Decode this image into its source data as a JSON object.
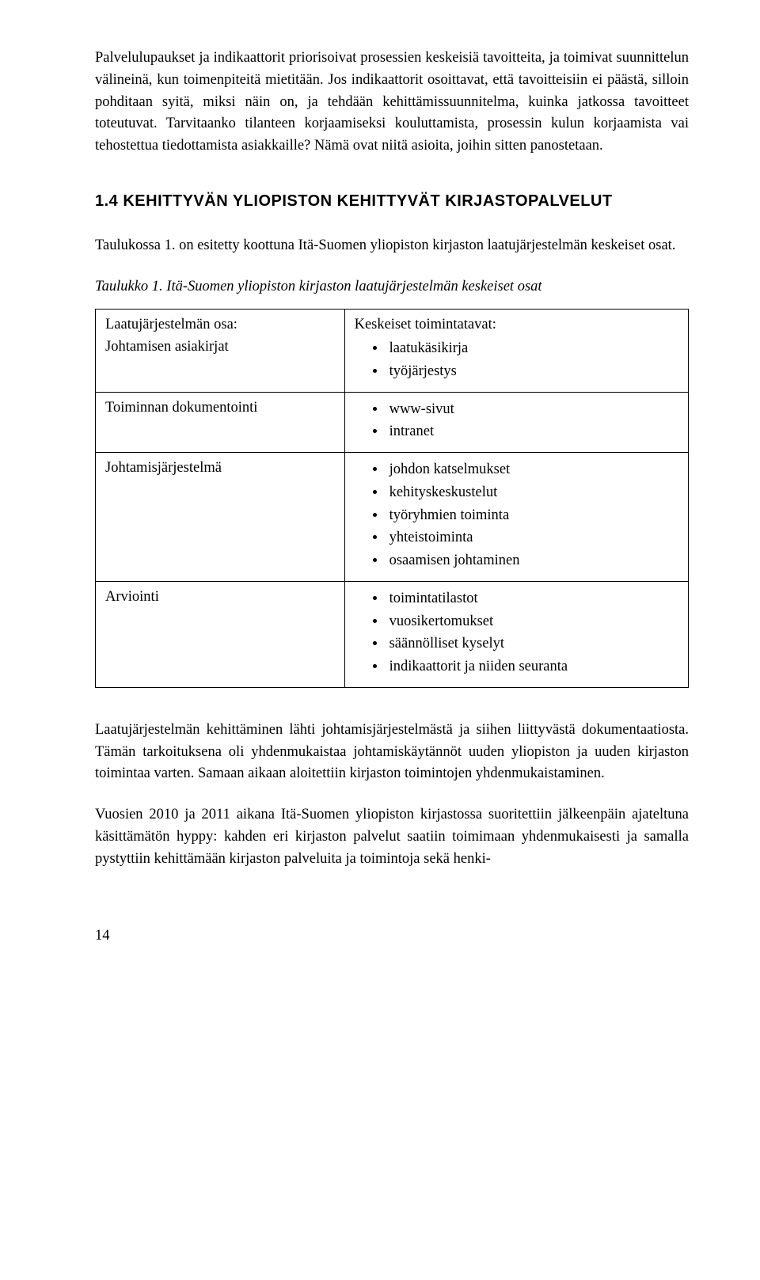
{
  "paragraphs": {
    "p1": "Palvelulupaukset ja indikaattorit priorisoivat prosessien keskeisiä tavoitteita, ja toimivat suunnittelun välineinä, kun toimenpiteitä mietitään. Jos indikaattorit osoittavat, että tavoitteisiin ei päästä, silloin pohditaan syitä, miksi näin on, ja tehdään kehittämissuunnitelma, kuinka jatkossa tavoitteet toteutuvat. Tarvitaanko tilanteen korjaamiseksi kouluttamista, prosessin kulun korjaamista vai tehostettua tiedottamista asiakkaille? Nämä ovat niitä asioita, joihin sitten panostetaan.",
    "p2": "Taulukossa 1. on esitetty koottuna Itä-Suomen yliopiston kirjaston laatujärjestelmän keskeiset osat.",
    "p3": "Laatujärjestelmän kehittäminen lähti johtamisjärjestelmästä ja siihen liittyvästä dokumentaatiosta. Tämän tarkoituksena oli yhdenmukaistaa johtamiskäytännöt uuden yliopiston ja uuden kirjaston toimintaa varten. Samaan aikaan aloitettiin kirjaston toimintojen yhdenmukaistaminen.",
    "p4": "Vuosien 2010 ja 2011 aikana Itä-Suomen yliopiston kirjastossa suoritettiin jälkeenpäin ajateltuna käsittämätön hyppy: kahden eri kirjaston palvelut saatiin toimimaan yhdenmukaisesti ja samalla pystyttiin kehittämään kirjaston palveluita ja toimintoja sekä henki-"
  },
  "heading": "1.4 KEHITTYVÄN YLIOPISTON KEHITTYVÄT KIRJASTOPALVELUT",
  "table_caption": "Taulukko 1. Itä-Suomen yliopiston kirjaston laatujärjestelmän keskeiset osat",
  "table": {
    "header_left": "Laatujärjestelmän osa:",
    "header_right": "Keskeiset toimintatavat:",
    "rows": [
      {
        "left": "Johtamisen asiakirjat",
        "items": [
          "laatukäsikirja",
          "työjärjestys"
        ]
      },
      {
        "left": "Toiminnan dokumentointi",
        "items": [
          "www-sivut",
          "intranet"
        ]
      },
      {
        "left": "Johtamisjärjestelmä",
        "items": [
          "johdon katselmukset",
          "kehityskeskustelut",
          "työryhmien toiminta",
          "yhteistoiminta",
          "osaamisen johtaminen"
        ]
      },
      {
        "left": "Arviointi",
        "items": [
          "toimintatilastot",
          "vuosikertomukset",
          "säännölliset kyselyt",
          "indikaattorit ja niiden seuranta"
        ]
      }
    ]
  },
  "page_number": "14"
}
